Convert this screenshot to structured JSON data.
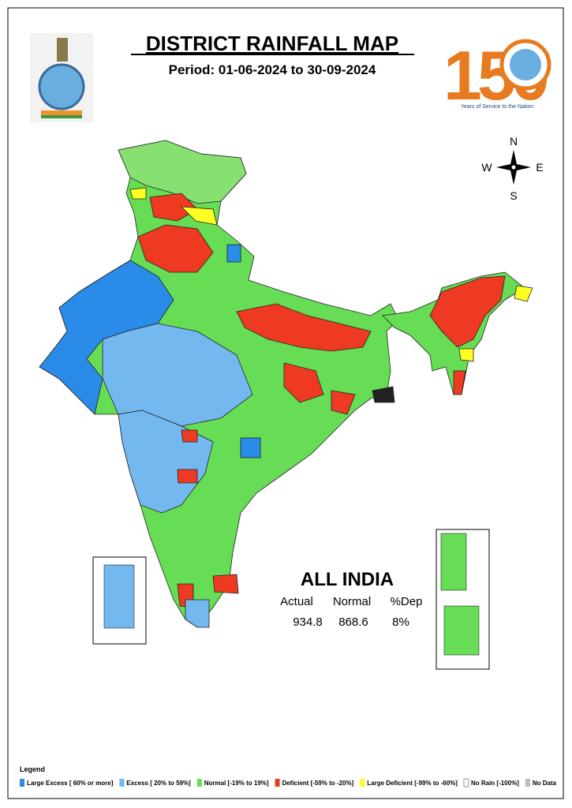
{
  "header": {
    "title": "DISTRICT RAINFALL MAP",
    "period": "Period: 01-06-2024 to 30-09-2024",
    "logo_number": "150",
    "logo_caption": "Years of Service to the Nation"
  },
  "compass": {
    "north": "N",
    "south": "S",
    "east": "E",
    "west": "W"
  },
  "summary": {
    "title": "ALL INDIA",
    "headers": [
      "Actual",
      "Normal",
      "%Dep"
    ],
    "values": [
      "934.8",
      "868.6",
      "8%"
    ]
  },
  "legend": {
    "title": "Legend",
    "items": [
      {
        "label": "Large Excess [ 60% or more]",
        "color": "#2a8be8"
      },
      {
        "label": "Excess [ 20% to 59%]",
        "color": "#74b8f0"
      },
      {
        "label": "Normal [-19% to 19%]",
        "color": "#66dd55"
      },
      {
        "label": "Deficient [-59% to -20%]",
        "color": "#ee3a22"
      },
      {
        "label": "Large Deficient [-99% to -60%]",
        "color": "#ffff22"
      },
      {
        "label": "No Rain  [-100%]",
        "color": "#ffffff"
      },
      {
        "label": "No Data",
        "color": "#bbbbbb"
      }
    ]
  }
}
